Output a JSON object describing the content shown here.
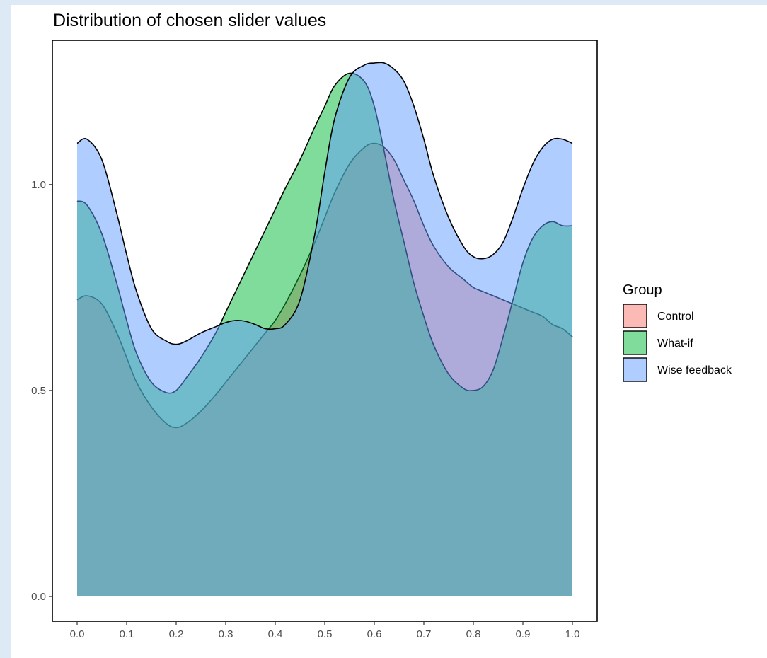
{
  "chart_data": {
    "type": "area",
    "title": "Distribution of chosen slider values",
    "xlabel": "",
    "ylabel": "",
    "xlim": [
      -0.05,
      1.05
    ],
    "ylim": [
      -0.06,
      1.35
    ],
    "xticks": [
      0.0,
      0.1,
      0.2,
      0.3,
      0.4,
      0.5,
      0.6,
      0.7,
      0.8,
      0.9,
      1.0
    ],
    "xtick_labels": [
      "0.0",
      "0.1",
      "0.2",
      "0.3",
      "0.4",
      "0.5",
      "0.6",
      "0.7",
      "0.8",
      "0.9",
      "1.0"
    ],
    "yticks": [
      0.0,
      0.5,
      1.0
    ],
    "ytick_labels": [
      "0.0",
      "0.5",
      "1.0"
    ],
    "grid": false,
    "legend": {
      "title": "Group",
      "position": "right",
      "entries": [
        "Control",
        "What-if",
        "Wise feedback"
      ]
    },
    "x": [
      0.0,
      0.02,
      0.05,
      0.08,
      0.1,
      0.12,
      0.15,
      0.18,
      0.2,
      0.22,
      0.25,
      0.28,
      0.3,
      0.32,
      0.34,
      0.36,
      0.38,
      0.4,
      0.42,
      0.45,
      0.48,
      0.5,
      0.52,
      0.55,
      0.58,
      0.6,
      0.62,
      0.64,
      0.66,
      0.68,
      0.7,
      0.72,
      0.75,
      0.78,
      0.8,
      0.82,
      0.84,
      0.86,
      0.88,
      0.9,
      0.92,
      0.94,
      0.96,
      0.98,
      1.0
    ],
    "series": [
      {
        "name": "Control",
        "color": "#f8766d",
        "values": [
          0.72,
          0.73,
          0.71,
          0.64,
          0.58,
          0.52,
          0.46,
          0.42,
          0.41,
          0.42,
          0.45,
          0.49,
          0.52,
          0.55,
          0.58,
          0.61,
          0.64,
          0.67,
          0.71,
          0.78,
          0.86,
          0.92,
          0.98,
          1.05,
          1.09,
          1.1,
          1.09,
          1.06,
          1.01,
          0.96,
          0.9,
          0.85,
          0.8,
          0.77,
          0.75,
          0.74,
          0.73,
          0.72,
          0.71,
          0.7,
          0.69,
          0.68,
          0.66,
          0.65,
          0.63
        ]
      },
      {
        "name": "What-if",
        "color": "#00ba38",
        "values": [
          0.96,
          0.95,
          0.88,
          0.76,
          0.67,
          0.59,
          0.52,
          0.495,
          0.5,
          0.53,
          0.58,
          0.64,
          0.69,
          0.74,
          0.79,
          0.84,
          0.89,
          0.94,
          0.99,
          1.06,
          1.14,
          1.19,
          1.24,
          1.27,
          1.25,
          1.19,
          1.08,
          0.96,
          0.86,
          0.76,
          0.68,
          0.61,
          0.54,
          0.505,
          0.5,
          0.51,
          0.55,
          0.63,
          0.72,
          0.81,
          0.87,
          0.9,
          0.91,
          0.9,
          0.9
        ]
      },
      {
        "name": "Wise feedback",
        "color": "#619cff",
        "values": [
          1.1,
          1.11,
          1.06,
          0.93,
          0.83,
          0.74,
          0.65,
          0.62,
          0.612,
          0.62,
          0.64,
          0.655,
          0.665,
          0.67,
          0.668,
          0.66,
          0.65,
          0.65,
          0.66,
          0.72,
          0.88,
          1.03,
          1.16,
          1.26,
          1.29,
          1.295,
          1.295,
          1.28,
          1.25,
          1.19,
          1.11,
          1.02,
          0.92,
          0.85,
          0.825,
          0.82,
          0.83,
          0.86,
          0.92,
          0.99,
          1.05,
          1.09,
          1.11,
          1.11,
          1.1
        ]
      }
    ]
  }
}
